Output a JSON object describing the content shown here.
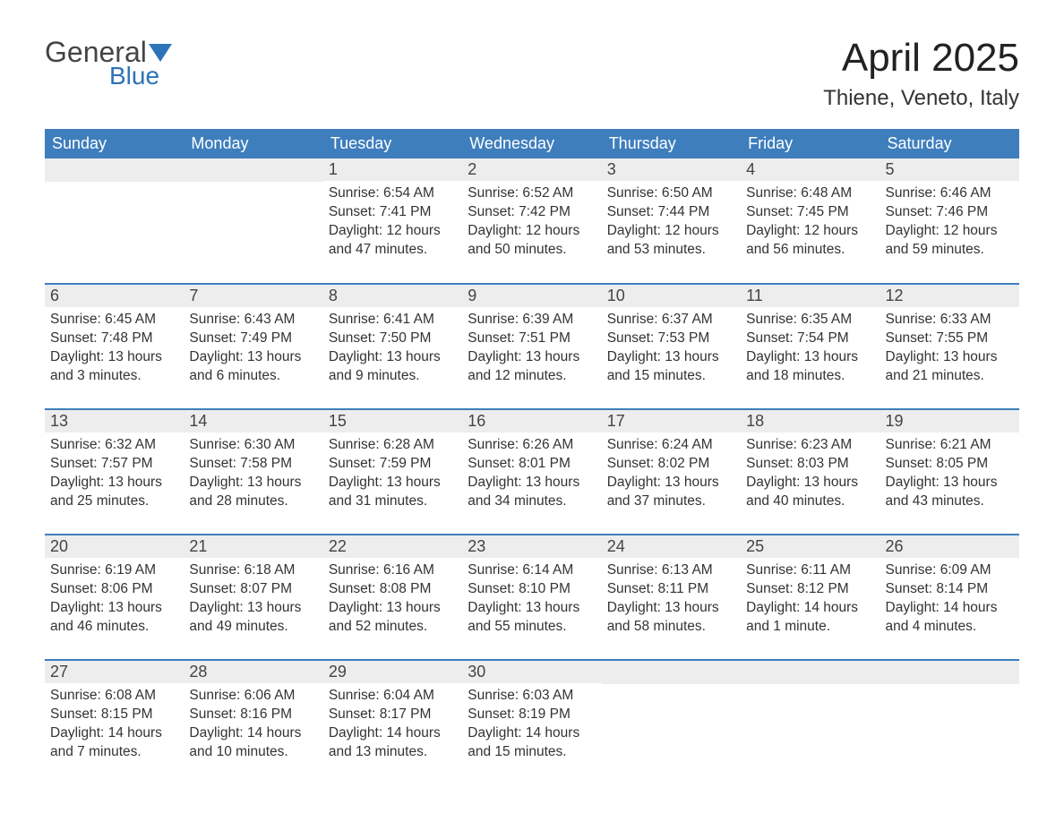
{
  "logo": {
    "general": "General",
    "blue": "Blue",
    "flag_color": "#2d73b8"
  },
  "title": "April 2025",
  "location": "Thiene, Veneto, Italy",
  "colors": {
    "header_bg": "#3e7ebd",
    "header_text": "#ffffff",
    "daynum_bg": "#ededed",
    "row_border": "#3e7ebd",
    "text": "#333333",
    "background": "#ffffff"
  },
  "day_headers": [
    "Sunday",
    "Monday",
    "Tuesday",
    "Wednesday",
    "Thursday",
    "Friday",
    "Saturday"
  ],
  "weeks": [
    [
      {
        "blank": true
      },
      {
        "blank": true
      },
      {
        "day": "1",
        "sunrise": "Sunrise: 6:54 AM",
        "sunset": "Sunset: 7:41 PM",
        "daylight": "Daylight: 12 hours and 47 minutes."
      },
      {
        "day": "2",
        "sunrise": "Sunrise: 6:52 AM",
        "sunset": "Sunset: 7:42 PM",
        "daylight": "Daylight: 12 hours and 50 minutes."
      },
      {
        "day": "3",
        "sunrise": "Sunrise: 6:50 AM",
        "sunset": "Sunset: 7:44 PM",
        "daylight": "Daylight: 12 hours and 53 minutes."
      },
      {
        "day": "4",
        "sunrise": "Sunrise: 6:48 AM",
        "sunset": "Sunset: 7:45 PM",
        "daylight": "Daylight: 12 hours and 56 minutes."
      },
      {
        "day": "5",
        "sunrise": "Sunrise: 6:46 AM",
        "sunset": "Sunset: 7:46 PM",
        "daylight": "Daylight: 12 hours and 59 minutes."
      }
    ],
    [
      {
        "day": "6",
        "sunrise": "Sunrise: 6:45 AM",
        "sunset": "Sunset: 7:48 PM",
        "daylight": "Daylight: 13 hours and 3 minutes."
      },
      {
        "day": "7",
        "sunrise": "Sunrise: 6:43 AM",
        "sunset": "Sunset: 7:49 PM",
        "daylight": "Daylight: 13 hours and 6 minutes."
      },
      {
        "day": "8",
        "sunrise": "Sunrise: 6:41 AM",
        "sunset": "Sunset: 7:50 PM",
        "daylight": "Daylight: 13 hours and 9 minutes."
      },
      {
        "day": "9",
        "sunrise": "Sunrise: 6:39 AM",
        "sunset": "Sunset: 7:51 PM",
        "daylight": "Daylight: 13 hours and 12 minutes."
      },
      {
        "day": "10",
        "sunrise": "Sunrise: 6:37 AM",
        "sunset": "Sunset: 7:53 PM",
        "daylight": "Daylight: 13 hours and 15 minutes."
      },
      {
        "day": "11",
        "sunrise": "Sunrise: 6:35 AM",
        "sunset": "Sunset: 7:54 PM",
        "daylight": "Daylight: 13 hours and 18 minutes."
      },
      {
        "day": "12",
        "sunrise": "Sunrise: 6:33 AM",
        "sunset": "Sunset: 7:55 PM",
        "daylight": "Daylight: 13 hours and 21 minutes."
      }
    ],
    [
      {
        "day": "13",
        "sunrise": "Sunrise: 6:32 AM",
        "sunset": "Sunset: 7:57 PM",
        "daylight": "Daylight: 13 hours and 25 minutes."
      },
      {
        "day": "14",
        "sunrise": "Sunrise: 6:30 AM",
        "sunset": "Sunset: 7:58 PM",
        "daylight": "Daylight: 13 hours and 28 minutes."
      },
      {
        "day": "15",
        "sunrise": "Sunrise: 6:28 AM",
        "sunset": "Sunset: 7:59 PM",
        "daylight": "Daylight: 13 hours and 31 minutes."
      },
      {
        "day": "16",
        "sunrise": "Sunrise: 6:26 AM",
        "sunset": "Sunset: 8:01 PM",
        "daylight": "Daylight: 13 hours and 34 minutes."
      },
      {
        "day": "17",
        "sunrise": "Sunrise: 6:24 AM",
        "sunset": "Sunset: 8:02 PM",
        "daylight": "Daylight: 13 hours and 37 minutes."
      },
      {
        "day": "18",
        "sunrise": "Sunrise: 6:23 AM",
        "sunset": "Sunset: 8:03 PM",
        "daylight": "Daylight: 13 hours and 40 minutes."
      },
      {
        "day": "19",
        "sunrise": "Sunrise: 6:21 AM",
        "sunset": "Sunset: 8:05 PM",
        "daylight": "Daylight: 13 hours and 43 minutes."
      }
    ],
    [
      {
        "day": "20",
        "sunrise": "Sunrise: 6:19 AM",
        "sunset": "Sunset: 8:06 PM",
        "daylight": "Daylight: 13 hours and 46 minutes."
      },
      {
        "day": "21",
        "sunrise": "Sunrise: 6:18 AM",
        "sunset": "Sunset: 8:07 PM",
        "daylight": "Daylight: 13 hours and 49 minutes."
      },
      {
        "day": "22",
        "sunrise": "Sunrise: 6:16 AM",
        "sunset": "Sunset: 8:08 PM",
        "daylight": "Daylight: 13 hours and 52 minutes."
      },
      {
        "day": "23",
        "sunrise": "Sunrise: 6:14 AM",
        "sunset": "Sunset: 8:10 PM",
        "daylight": "Daylight: 13 hours and 55 minutes."
      },
      {
        "day": "24",
        "sunrise": "Sunrise: 6:13 AM",
        "sunset": "Sunset: 8:11 PM",
        "daylight": "Daylight: 13 hours and 58 minutes."
      },
      {
        "day": "25",
        "sunrise": "Sunrise: 6:11 AM",
        "sunset": "Sunset: 8:12 PM",
        "daylight": "Daylight: 14 hours and 1 minute."
      },
      {
        "day": "26",
        "sunrise": "Sunrise: 6:09 AM",
        "sunset": "Sunset: 8:14 PM",
        "daylight": "Daylight: 14 hours and 4 minutes."
      }
    ],
    [
      {
        "day": "27",
        "sunrise": "Sunrise: 6:08 AM",
        "sunset": "Sunset: 8:15 PM",
        "daylight": "Daylight: 14 hours and 7 minutes."
      },
      {
        "day": "28",
        "sunrise": "Sunrise: 6:06 AM",
        "sunset": "Sunset: 8:16 PM",
        "daylight": "Daylight: 14 hours and 10 minutes."
      },
      {
        "day": "29",
        "sunrise": "Sunrise: 6:04 AM",
        "sunset": "Sunset: 8:17 PM",
        "daylight": "Daylight: 14 hours and 13 minutes."
      },
      {
        "day": "30",
        "sunrise": "Sunrise: 6:03 AM",
        "sunset": "Sunset: 8:19 PM",
        "daylight": "Daylight: 14 hours and 15 minutes."
      },
      {
        "blank": true
      },
      {
        "blank": true
      },
      {
        "blank": true
      }
    ]
  ]
}
